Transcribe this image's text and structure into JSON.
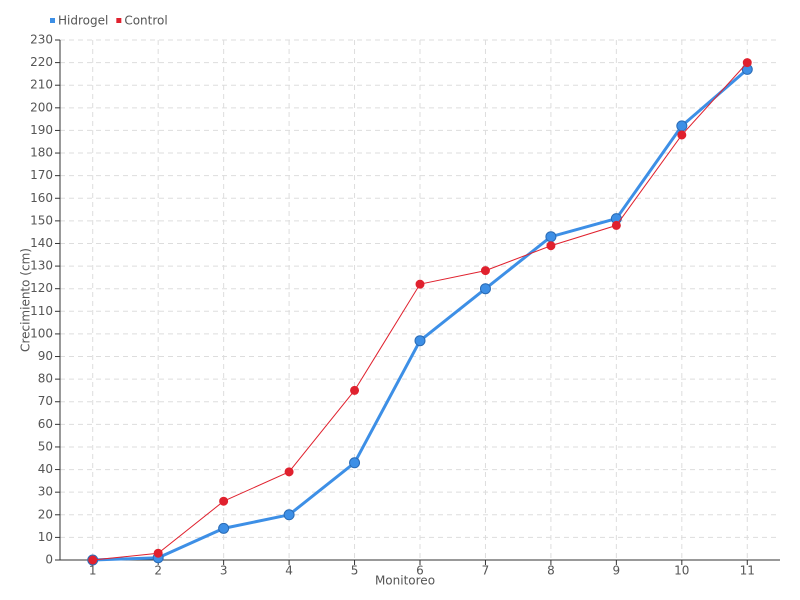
{
  "chart_data": {
    "type": "line",
    "x_label": "Monitoreo",
    "y_label": "Crecimiento (cm)",
    "x": [
      1,
      2,
      3,
      4,
      5,
      6,
      7,
      8,
      9,
      10,
      11
    ],
    "xlim": [
      0.5,
      11.5
    ],
    "xticks": [
      1,
      2,
      3,
      4,
      5,
      6,
      7,
      8,
      9,
      10,
      11
    ],
    "ylim": [
      0,
      230
    ],
    "yticks": [
      0,
      10,
      20,
      30,
      40,
      50,
      60,
      70,
      80,
      90,
      100,
      110,
      120,
      130,
      140,
      150,
      160,
      170,
      180,
      190,
      200,
      210,
      220,
      230
    ],
    "grid": true,
    "legend": "top-left",
    "series": [
      {
        "name": "Hidrogel",
        "color": "#3d8fe6",
        "values": [
          0,
          1,
          14,
          20,
          43,
          97,
          120,
          143,
          151,
          192,
          217
        ]
      },
      {
        "name": "Control",
        "color": "#e0212e",
        "values": [
          0,
          3,
          26,
          39,
          75,
          122,
          128,
          139,
          148,
          188,
          220
        ]
      }
    ]
  }
}
